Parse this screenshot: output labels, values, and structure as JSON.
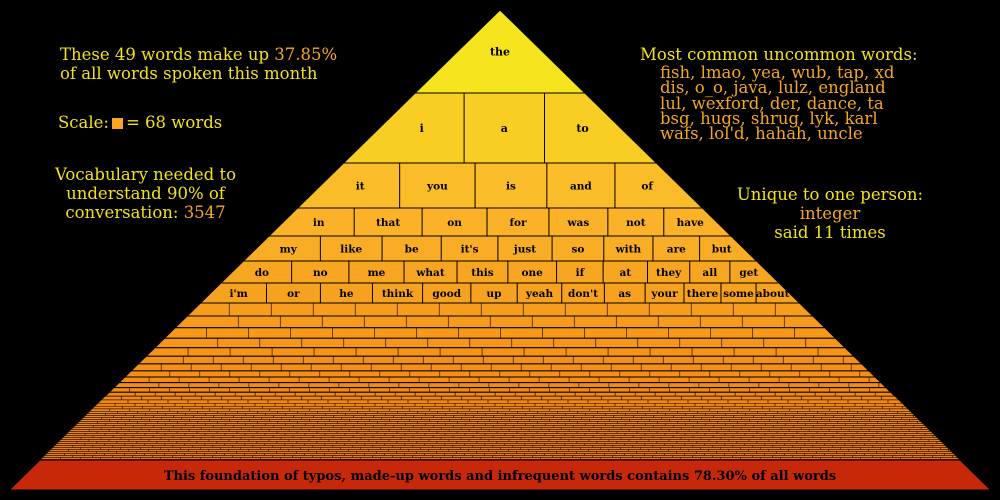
{
  "left_annotations": {
    "coverage_line1": "These 49 words make up",
    "coverage_value": "37.85%",
    "coverage_line2": "of all words spoken this month",
    "scale_prefix": "Scale:",
    "scale_suffix": "= 68 words",
    "vocab_line1": "Vocabulary needed to",
    "vocab_line2": "understand 90% of",
    "vocab_line3": "conversation:",
    "vocab_value": "3547"
  },
  "right_annotations": {
    "uncommon_title": "Most common uncommon words:",
    "uncommon_lines": [
      "fish, lmao, yea, wub, tap, xd",
      "dis, o_o, java, lulz, england",
      "lul, wexford, der, dance, ta",
      "bsg, hugs, shrug, lyk, karl",
      "wafs, lol'd, hahah, uncle"
    ],
    "unique_title": "Unique to one person:",
    "unique_word": "integer",
    "unique_count": "said 11 times"
  },
  "chart_data": {
    "type": "pyramid",
    "title": "",
    "rows": [
      [
        "the"
      ],
      [
        "i",
        "a",
        "to"
      ],
      [
        "it",
        "you",
        "is",
        "and",
        "of"
      ],
      [
        "in",
        "that",
        "on",
        "for",
        "was",
        "not",
        "have"
      ],
      [
        "my",
        "like",
        "be",
        "it's",
        "just",
        "so",
        "with",
        "are",
        "but"
      ],
      [
        "do",
        "no",
        "me",
        "what",
        "this",
        "one",
        "if",
        "at",
        "they",
        "all",
        "get"
      ],
      [
        "i'm",
        "or",
        "he",
        "think",
        "good",
        "up",
        "yeah",
        "don't",
        "as",
        "your",
        "there",
        "some",
        "about"
      ]
    ],
    "top_words_count": 49,
    "top_words_share_percent": 37.85,
    "scale_words_per_square": 68,
    "vocab_for_90_percent": 3547,
    "foundation_share_percent": 78.3,
    "foundation_label": "This foundation of typos, made-up words and infrequent words contains 78.30% of all words",
    "colors": {
      "top": "#f5f01c",
      "mid": "#fbb42a",
      "bottom": "#f07a0a",
      "foundation": "#c8280a",
      "outline": "#000000",
      "annotation_yellow": "#f2e21a",
      "annotation_orange": "#f5a623"
    }
  }
}
